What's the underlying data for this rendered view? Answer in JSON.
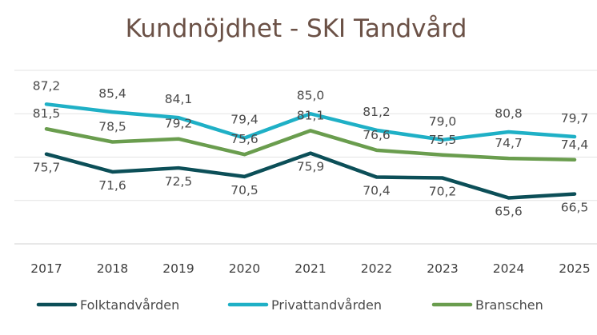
{
  "chart_data": {
    "type": "line",
    "title": "Kundnöjdhet - SKI Tandvård",
    "xlabel": "",
    "ylabel": "",
    "ylim": [
      55,
      95
    ],
    "grid": true,
    "legend_position": "bottom",
    "categories": [
      "2017",
      "2018",
      "2019",
      "2020",
      "2021",
      "2022",
      "2023",
      "2024",
      "2025"
    ],
    "series": [
      {
        "name": "Folktandvården",
        "color": "#0c4f58",
        "values": [
          75.7,
          71.6,
          72.5,
          70.5,
          75.9,
          70.4,
          70.2,
          65.6,
          66.5
        ],
        "labels": [
          "75,7",
          "71,6",
          "72,5",
          "70,5",
          "75,9",
          "70,4",
          "70,2",
          "65,6",
          "66,5"
        ]
      },
      {
        "name": "Privattandvården",
        "color": "#1fb0c6",
        "values": [
          87.2,
          85.4,
          84.1,
          79.4,
          85.0,
          81.2,
          79.0,
          80.8,
          79.7
        ],
        "labels": [
          "87,2",
          "85,4",
          "84,1",
          "79,4",
          "85,0",
          "81,2",
          "79,0",
          "80,8",
          "79,7"
        ]
      },
      {
        "name": "Branschen",
        "color": "#6a9d4e",
        "values": [
          81.5,
          78.5,
          79.2,
          75.6,
          81.1,
          76.6,
          75.5,
          74.7,
          74.4
        ],
        "labels": [
          "81,5",
          "78,5",
          "79,2",
          "75,6",
          "81,1",
          "76,6",
          "75,5",
          "74,7",
          "74,4"
        ]
      }
    ]
  }
}
